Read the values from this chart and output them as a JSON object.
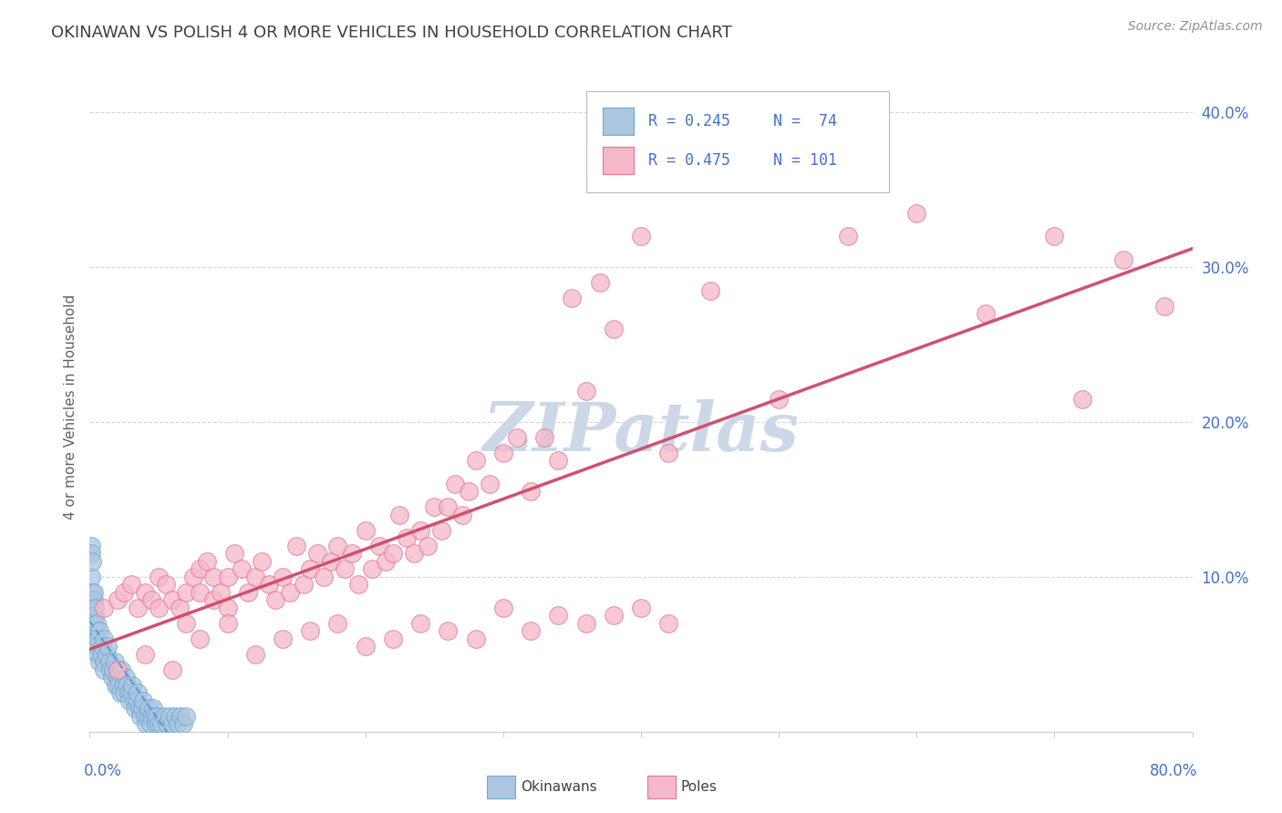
{
  "title": "OKINAWAN VS POLISH 4 OR MORE VEHICLES IN HOUSEHOLD CORRELATION CHART",
  "source": "Source: ZipAtlas.com",
  "ylabel": "4 or more Vehicles in Household",
  "xmin": 0.0,
  "xmax": 0.8,
  "ymin": 0.0,
  "ymax": 0.42,
  "yticks": [
    0.0,
    0.1,
    0.2,
    0.3,
    0.4
  ],
  "ytick_labels": [
    "",
    "10.0%",
    "20.0%",
    "30.0%",
    "40.0%"
  ],
  "okinawan_R": 0.245,
  "okinawan_N": 74,
  "polish_R": 0.475,
  "polish_N": 101,
  "okinawan_fill_color": "#adc6e0",
  "okinawan_edge_color": "#6aaad4",
  "polish_fill_color": "#f5b8c8",
  "polish_edge_color": "#e07898",
  "okinawan_line_color": "#5b9bd5",
  "polish_line_color": "#d05070",
  "background_color": "#ffffff",
  "grid_color": "#cccccc",
  "title_color": "#404040",
  "source_color": "#909090",
  "watermark_color": "#ccd8e8",
  "axis_label_color": "#4472c4",
  "ylabel_color": "#606060",
  "okinawan_x": [
    0.001,
    0.001,
    0.001,
    0.002,
    0.002,
    0.002,
    0.003,
    0.003,
    0.003,
    0.004,
    0.004,
    0.004,
    0.005,
    0.005,
    0.005,
    0.006,
    0.006,
    0.007,
    0.007,
    0.008,
    0.009,
    0.01,
    0.01,
    0.01,
    0.012,
    0.013,
    0.014,
    0.015,
    0.016,
    0.017,
    0.018,
    0.019,
    0.02,
    0.02,
    0.021,
    0.022,
    0.023,
    0.024,
    0.025,
    0.026,
    0.027,
    0.028,
    0.029,
    0.03,
    0.031,
    0.032,
    0.033,
    0.034,
    0.035,
    0.036,
    0.037,
    0.038,
    0.039,
    0.04,
    0.041,
    0.042,
    0.043,
    0.044,
    0.045,
    0.046,
    0.047,
    0.048,
    0.049,
    0.05,
    0.052,
    0.054,
    0.056,
    0.058,
    0.06,
    0.062,
    0.064,
    0.066,
    0.068,
    0.07
  ],
  "okinawan_y": [
    0.12,
    0.1,
    0.115,
    0.09,
    0.11,
    0.08,
    0.085,
    0.09,
    0.07,
    0.075,
    0.065,
    0.08,
    0.07,
    0.06,
    0.055,
    0.06,
    0.05,
    0.065,
    0.045,
    0.05,
    0.055,
    0.06,
    0.045,
    0.04,
    0.05,
    0.055,
    0.045,
    0.04,
    0.035,
    0.04,
    0.045,
    0.03,
    0.04,
    0.035,
    0.03,
    0.025,
    0.04,
    0.03,
    0.025,
    0.035,
    0.03,
    0.025,
    0.02,
    0.025,
    0.03,
    0.02,
    0.015,
    0.02,
    0.025,
    0.015,
    0.01,
    0.015,
    0.02,
    0.01,
    0.005,
    0.01,
    0.015,
    0.005,
    0.01,
    0.015,
    0.01,
    0.005,
    0.01,
    0.005,
    0.005,
    0.01,
    0.005,
    0.01,
    0.005,
    0.01,
    0.005,
    0.01,
    0.005,
    0.01
  ],
  "polish_x": [
    0.01,
    0.02,
    0.025,
    0.03,
    0.035,
    0.04,
    0.045,
    0.05,
    0.05,
    0.055,
    0.06,
    0.065,
    0.07,
    0.07,
    0.075,
    0.08,
    0.08,
    0.085,
    0.09,
    0.09,
    0.095,
    0.1,
    0.1,
    0.105,
    0.11,
    0.115,
    0.12,
    0.125,
    0.13,
    0.135,
    0.14,
    0.145,
    0.15,
    0.155,
    0.16,
    0.165,
    0.17,
    0.175,
    0.18,
    0.185,
    0.19,
    0.195,
    0.2,
    0.205,
    0.21,
    0.215,
    0.22,
    0.225,
    0.23,
    0.235,
    0.24,
    0.245,
    0.25,
    0.255,
    0.26,
    0.265,
    0.27,
    0.275,
    0.28,
    0.29,
    0.3,
    0.31,
    0.32,
    0.33,
    0.34,
    0.35,
    0.36,
    0.37,
    0.38,
    0.4,
    0.42,
    0.45,
    0.5,
    0.55,
    0.6,
    0.65,
    0.7,
    0.72,
    0.75,
    0.78,
    0.02,
    0.04,
    0.06,
    0.08,
    0.1,
    0.12,
    0.14,
    0.16,
    0.18,
    0.2,
    0.22,
    0.24,
    0.26,
    0.28,
    0.3,
    0.32,
    0.34,
    0.36,
    0.38,
    0.4,
    0.42
  ],
  "polish_y": [
    0.08,
    0.085,
    0.09,
    0.095,
    0.08,
    0.09,
    0.085,
    0.1,
    0.08,
    0.095,
    0.085,
    0.08,
    0.09,
    0.07,
    0.1,
    0.09,
    0.105,
    0.11,
    0.085,
    0.1,
    0.09,
    0.1,
    0.08,
    0.115,
    0.105,
    0.09,
    0.1,
    0.11,
    0.095,
    0.085,
    0.1,
    0.09,
    0.12,
    0.095,
    0.105,
    0.115,
    0.1,
    0.11,
    0.12,
    0.105,
    0.115,
    0.095,
    0.13,
    0.105,
    0.12,
    0.11,
    0.115,
    0.14,
    0.125,
    0.115,
    0.13,
    0.12,
    0.145,
    0.13,
    0.145,
    0.16,
    0.14,
    0.155,
    0.175,
    0.16,
    0.18,
    0.19,
    0.155,
    0.19,
    0.175,
    0.28,
    0.22,
    0.29,
    0.26,
    0.32,
    0.18,
    0.285,
    0.215,
    0.32,
    0.335,
    0.27,
    0.32,
    0.215,
    0.305,
    0.275,
    0.04,
    0.05,
    0.04,
    0.06,
    0.07,
    0.05,
    0.06,
    0.065,
    0.07,
    0.055,
    0.06,
    0.07,
    0.065,
    0.06,
    0.08,
    0.065,
    0.075,
    0.07,
    0.075,
    0.08,
    0.07
  ]
}
